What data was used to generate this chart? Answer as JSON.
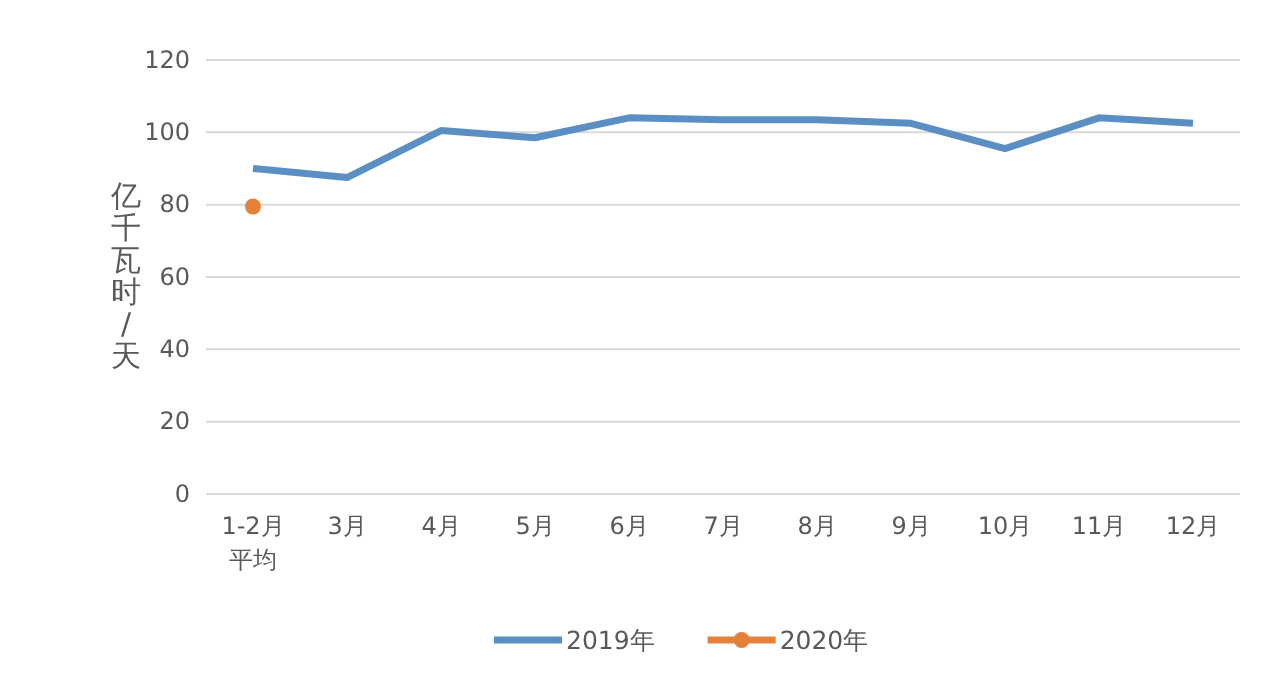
{
  "chart_data": {
    "type": "line",
    "ylabel": "亿千瓦时/天",
    "categories": [
      "1-2月平均",
      "3月",
      "4月",
      "5月",
      "6月",
      "7月",
      "8月",
      "9月",
      "10月",
      "11月",
      "12月"
    ],
    "series": [
      {
        "name": "2019年",
        "color": "#5b8fc3",
        "values": [
          90,
          87.5,
          100.5,
          98.5,
          104,
          103.5,
          103.5,
          102.5,
          95.5,
          104,
          102.5
        ],
        "marker": "none"
      },
      {
        "name": "2020年",
        "color": "#e5823a",
        "values": [
          79.5,
          null,
          null,
          null,
          null,
          null,
          null,
          null,
          null,
          null,
          null
        ],
        "marker": "circle"
      }
    ],
    "ylim": [
      0,
      120
    ],
    "yticks": [
      0,
      20,
      40,
      60,
      80,
      100,
      120
    ],
    "grid": "y",
    "legend": "bottom",
    "line_style": "solid"
  }
}
